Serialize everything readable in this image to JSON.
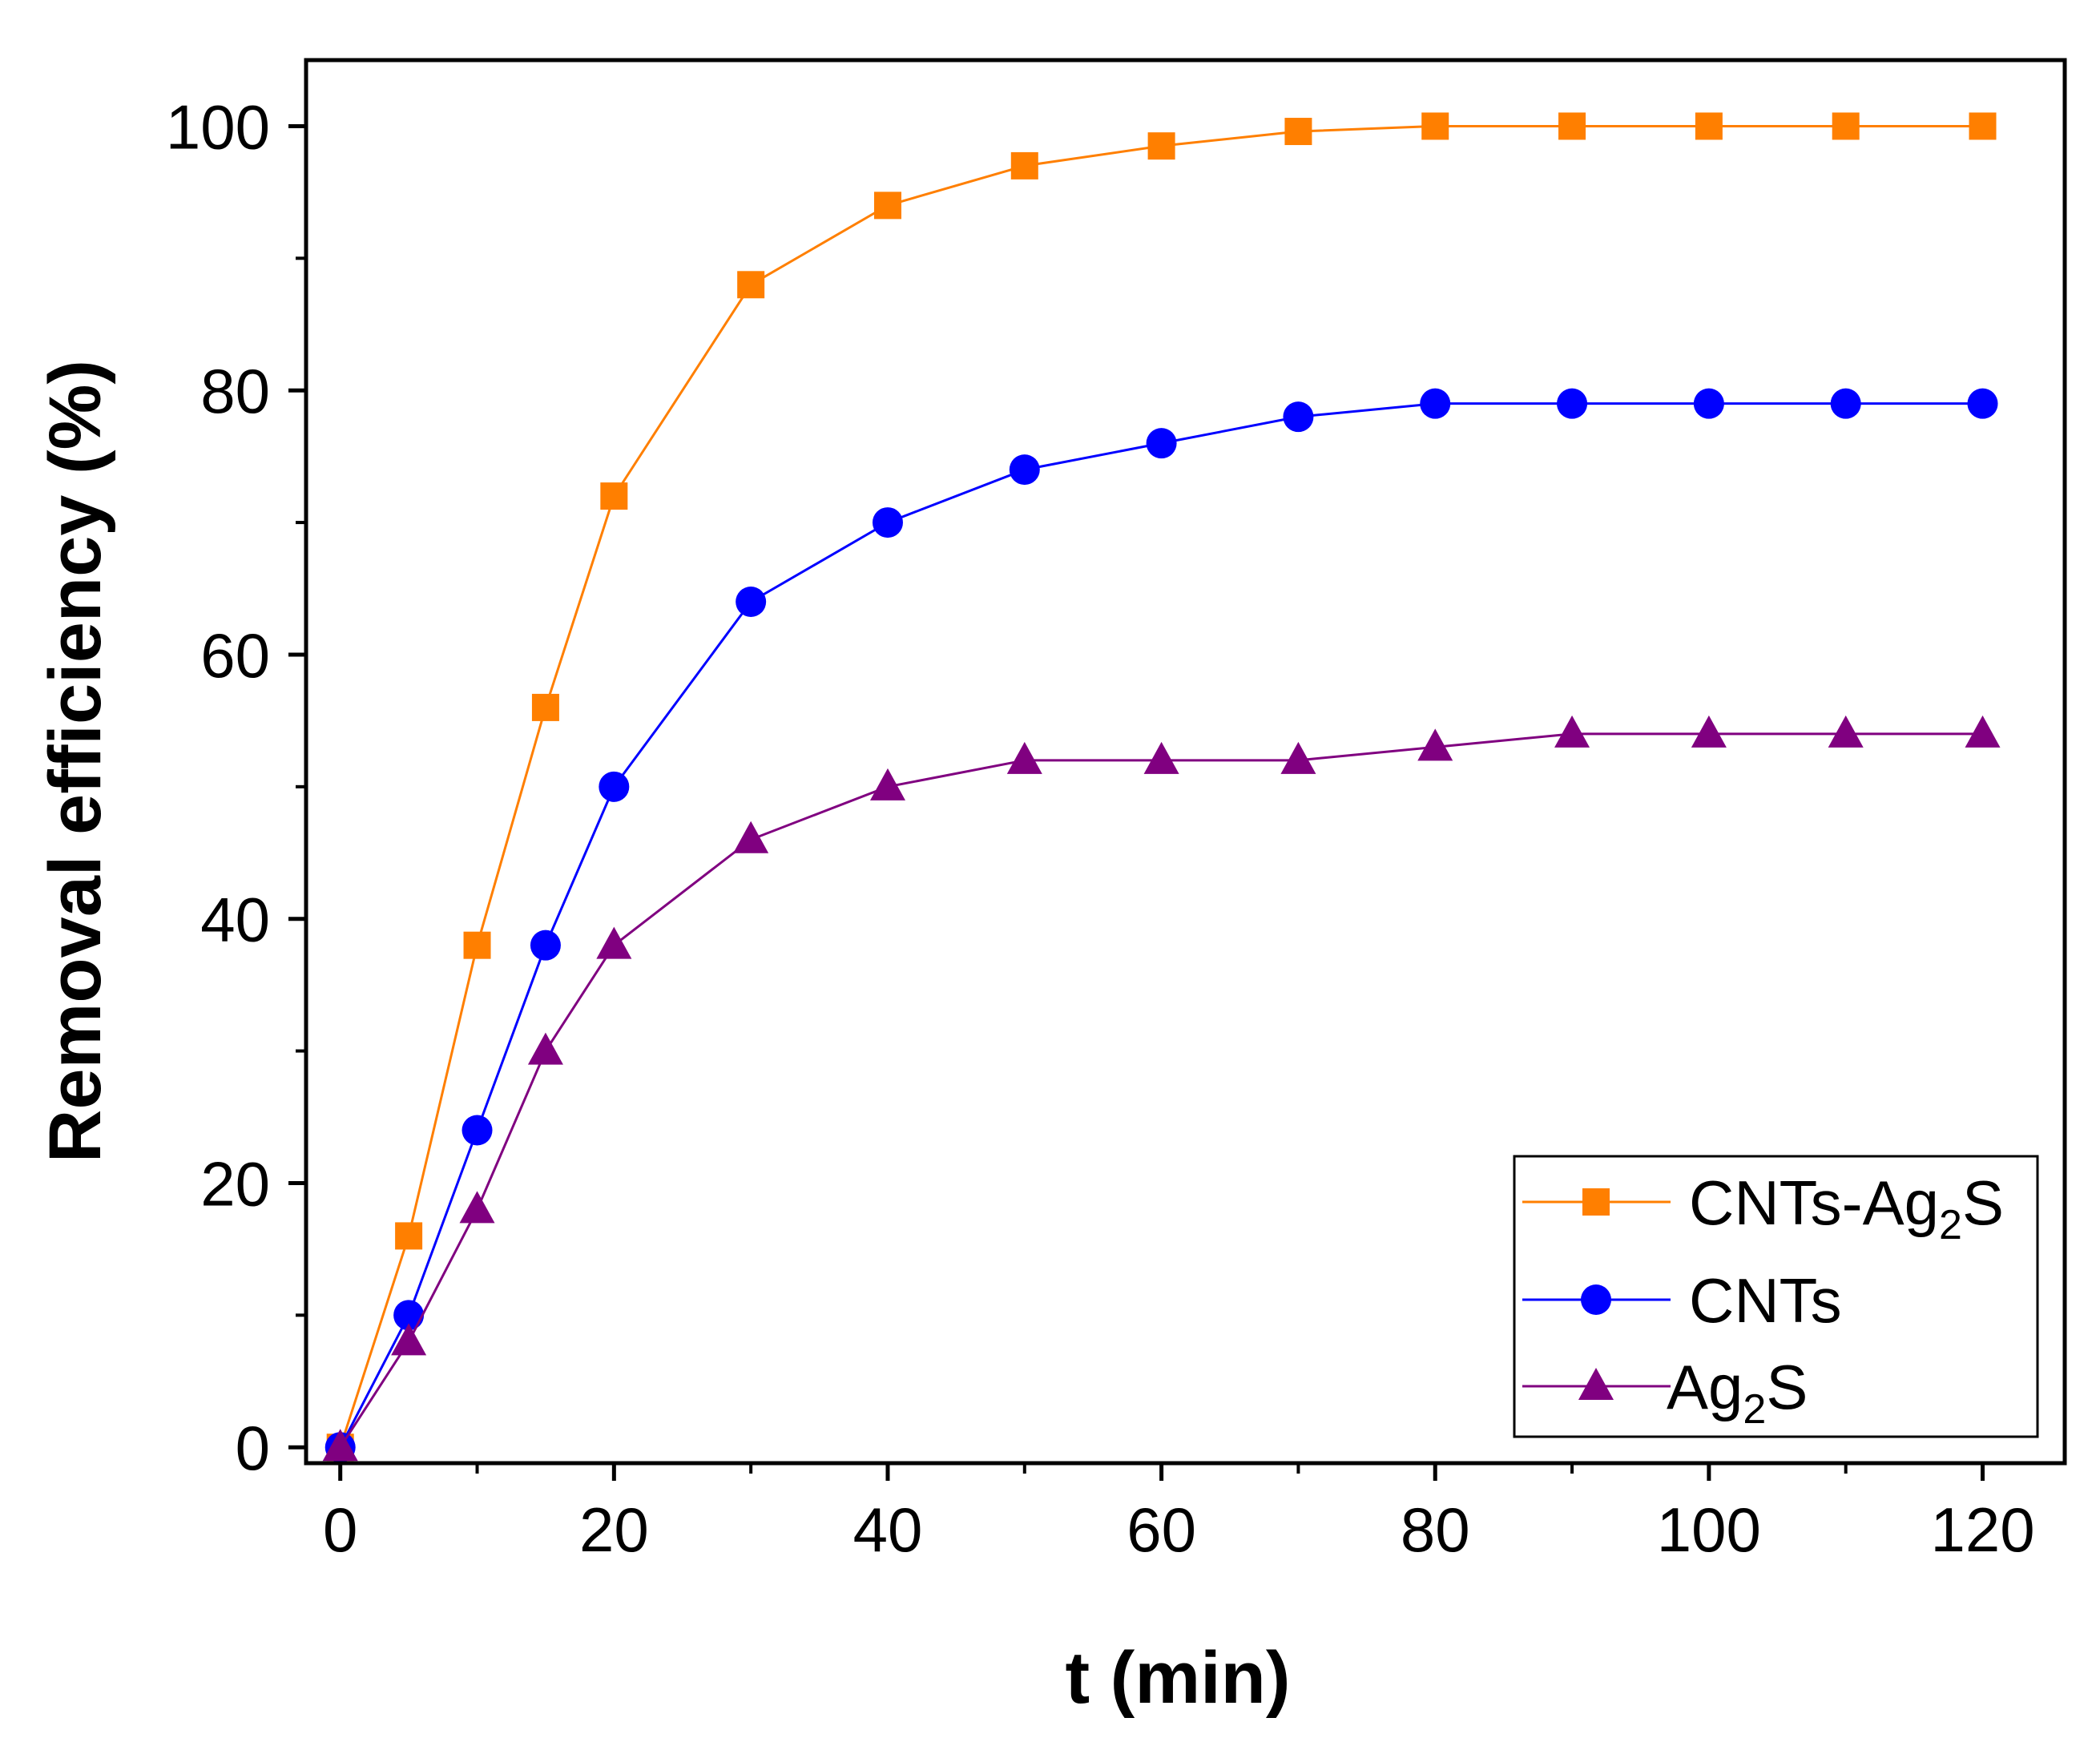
{
  "chart_data": {
    "type": "line",
    "title": "",
    "xlabel": "t (min)",
    "ylabel": "Removal efficiency (%)",
    "xlim": [
      -2.5,
      126
    ],
    "ylim": [
      -1.2,
      105
    ],
    "x_major_ticks": [
      0,
      20,
      40,
      60,
      80,
      100,
      120
    ],
    "x_minor_ticks": [
      10,
      30,
      50,
      70,
      90,
      110
    ],
    "y_major_ticks": [
      0,
      20,
      40,
      60,
      80,
      100
    ],
    "y_minor_ticks": [
      10,
      30,
      50,
      70,
      90
    ],
    "x_tick_labels": [
      "0",
      "20",
      "40",
      "60",
      "80",
      "100",
      "120"
    ],
    "y_tick_labels": [
      "0",
      "20",
      "40",
      "60",
      "80",
      "100"
    ],
    "grid": false,
    "legend_position": "bottom-right",
    "series": [
      {
        "name": "CNTs-Ag2S",
        "label_main": "CNTs-Ag",
        "label_sub": "2",
        "label_tail": "S",
        "color": "#FF7F00",
        "marker": "square",
        "x": [
          0,
          5,
          10,
          15,
          20,
          30,
          40,
          50,
          60,
          70,
          80,
          90,
          100,
          110,
          120
        ],
        "y": [
          0,
          16,
          38,
          56,
          72,
          88,
          94,
          97,
          98.5,
          99.6,
          100,
          100,
          100,
          100,
          100
        ]
      },
      {
        "name": "CNTs",
        "label_main": "CNTs",
        "label_sub": "",
        "label_tail": "",
        "color": "#0000FF",
        "marker": "circle",
        "x": [
          0,
          5,
          10,
          15,
          20,
          30,
          40,
          50,
          60,
          70,
          80,
          90,
          100,
          110,
          120
        ],
        "y": [
          0,
          10,
          24,
          38,
          50,
          64,
          70,
          74,
          76,
          78,
          79,
          79,
          79,
          79,
          79
        ]
      },
      {
        "name": "Ag2S",
        "label_main": "Ag",
        "label_sub": "2",
        "label_tail": "S",
        "color": "#800080",
        "marker": "triangle",
        "x": [
          0,
          5,
          10,
          15,
          20,
          30,
          40,
          50,
          60,
          70,
          80,
          90,
          100,
          110,
          120
        ],
        "y": [
          0,
          8,
          18,
          30,
          38,
          46,
          50,
          52,
          52,
          52,
          53,
          54,
          54,
          54,
          54
        ]
      }
    ]
  }
}
